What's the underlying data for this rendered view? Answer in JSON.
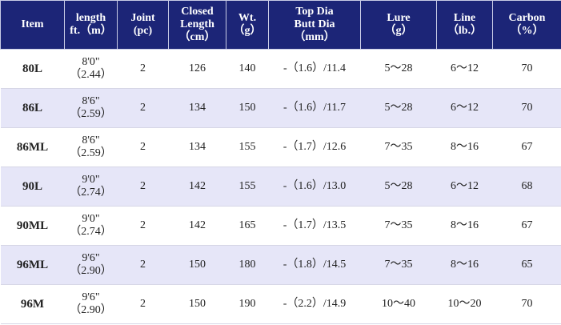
{
  "table": {
    "header": [
      [
        "Item"
      ],
      [
        "length",
        "ft.（m）"
      ],
      [
        "Joint",
        "(pc)"
      ],
      [
        "Closed",
        "Length",
        "（cm）"
      ],
      [
        "Wt.",
        "（g）"
      ],
      [
        "Top Dia",
        "Butt Dia",
        "（mm）"
      ],
      [
        "Lure",
        "（g）"
      ],
      [
        "Line",
        "（lb.）"
      ],
      [
        "Carbon",
        "（%）"
      ]
    ],
    "rows": [
      [
        "80L",
        [
          "8'0\"",
          "（2.44）"
        ],
        2,
        126,
        140,
        "-（1.6）/11.4",
        "5～28",
        "6～12",
        70
      ],
      [
        "86L",
        [
          "8'6\"",
          "（2.59）"
        ],
        2,
        134,
        150,
        "-（1.6）/11.7",
        "5～28",
        "6～12",
        70
      ],
      [
        "86ML",
        [
          "8'6\"",
          "（2.59）"
        ],
        2,
        134,
        155,
        "-（1.7）/12.6",
        "7～35",
        "8～16",
        67
      ],
      [
        "90L",
        [
          "9'0\"",
          "（2.74）"
        ],
        2,
        142,
        155,
        "-（1.6）/13.0",
        "5～28",
        "6～12",
        68
      ],
      [
        "90ML",
        [
          "9'0\"",
          "（2.74）"
        ],
        2,
        142,
        165,
        "-（1.7）/13.5",
        "7～35",
        "8～16",
        67
      ],
      [
        "96ML",
        [
          "9'6\"",
          "（2.90）"
        ],
        2,
        150,
        180,
        "-（1.8）/14.5",
        "7～35",
        "8～16",
        65
      ],
      [
        "96M",
        [
          "9'6\"",
          "（2.90）"
        ],
        2,
        150,
        190,
        "-（2.2）/14.9",
        "10～40",
        "10～20",
        70
      ]
    ]
  }
}
